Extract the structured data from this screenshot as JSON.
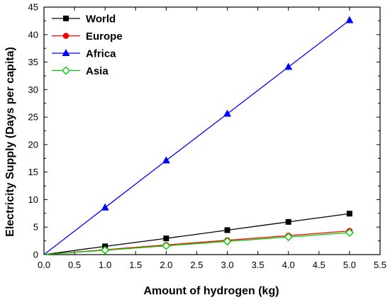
{
  "chart_data": {
    "type": "line",
    "title": "",
    "xlabel": "Amount of hydrogen (kg)",
    "ylabel": "Electricity Supply (Days per capita)",
    "xlim": [
      0.0,
      5.5
    ],
    "ylim": [
      0,
      45
    ],
    "xticks": [
      "0.0",
      "0.5",
      "1.0",
      "1.5",
      "2.0",
      "2.5",
      "3.0",
      "3.5",
      "4.0",
      "4.5",
      "5.0",
      "5.5"
    ],
    "yticks": [
      "0",
      "5",
      "10",
      "15",
      "20",
      "25",
      "30",
      "35",
      "40",
      "45"
    ],
    "grid": false,
    "legend_position": "top-left",
    "x": [
      0,
      1,
      2,
      3,
      4,
      5
    ],
    "series": [
      {
        "name": "World",
        "color": "#000000",
        "marker": "square",
        "values": [
          0,
          1.5,
          2.95,
          4.45,
          5.95,
          7.45
        ]
      },
      {
        "name": "Europe",
        "color": "#ff0000",
        "marker": "circle",
        "values": [
          0,
          0.88,
          1.75,
          2.6,
          3.45,
          4.3
        ]
      },
      {
        "name": "Africa",
        "color": "#0000ff",
        "marker": "triangle",
        "values": [
          0,
          8.55,
          17.1,
          25.6,
          34.1,
          42.6
        ]
      },
      {
        "name": "Asia",
        "color": "#00cc00",
        "marker": "diamond-open",
        "values": [
          0,
          0.8,
          1.6,
          2.4,
          3.2,
          4.0
        ]
      }
    ]
  }
}
